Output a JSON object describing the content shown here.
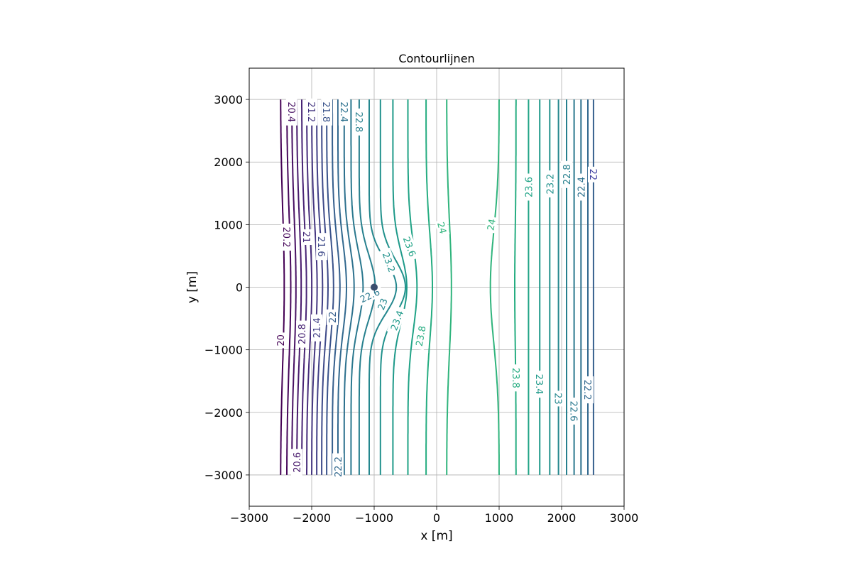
{
  "chart_data": {
    "type": "contour",
    "title": "Contourlijnen",
    "xlabel": "x [m]",
    "ylabel": "y [m]",
    "xlim": [
      -3000,
      3000
    ],
    "ylim": [
      -3500,
      3500
    ],
    "xticks": [
      -3000,
      -2000,
      -1000,
      0,
      1000,
      2000,
      3000
    ],
    "yticks": [
      -3000,
      -2000,
      -1000,
      0,
      1000,
      2000,
      3000
    ],
    "xtick_labels": [
      "−3000",
      "−2000",
      "−1000",
      "0",
      "1000",
      "2000",
      "3000"
    ],
    "ytick_labels": [
      "−3000",
      "−2000",
      "−1000",
      "0",
      "1000",
      "2000",
      "3000"
    ],
    "grid": true,
    "colormap": "viridis",
    "domain": {
      "x": [
        -2500,
        2500
      ],
      "y": [
        -3000,
        3000
      ]
    },
    "well": {
      "x": -1000,
      "y": 0,
      "color": "#3b4e6e"
    },
    "levels_left": [
      {
        "value": 20.0,
        "x": -2500,
        "color": "#440154"
      },
      {
        "value": 20.2,
        "x": -2400,
        "color": "#46065a"
      },
      {
        "value": 20.4,
        "x": -2320,
        "color": "#471063"
      },
      {
        "value": 20.6,
        "x": -2240,
        "color": "#481a6c"
      },
      {
        "value": 20.8,
        "x": -2160,
        "color": "#482475"
      },
      {
        "value": 21.0,
        "x": -2080,
        "color": "#472d7b"
      },
      {
        "value": 21.2,
        "x": -2000,
        "color": "#453781"
      },
      {
        "value": 21.4,
        "x": -1920,
        "color": "#424086"
      },
      {
        "value": 21.6,
        "x": -1840,
        "color": "#3e4a89"
      },
      {
        "value": 21.8,
        "x": -1760,
        "color": "#3a538b"
      },
      {
        "value": 22.0,
        "x": -1670,
        "color": "#355f8d"
      },
      {
        "value": 22.2,
        "x": -1580,
        "color": "#31688e"
      },
      {
        "value": 22.4,
        "x": -1480,
        "color": "#2d718e"
      },
      {
        "value": 22.6,
        "x": -1370,
        "color": "#2a788e"
      },
      {
        "value": 22.8,
        "x": -1240,
        "color": "#27808e"
      },
      {
        "value": 23.0,
        "x": -1080,
        "color": "#24878e"
      },
      {
        "value": 23.2,
        "x": -900,
        "color": "#21918c"
      },
      {
        "value": 23.4,
        "x": -700,
        "color": "#1f9a8a"
      },
      {
        "value": 23.6,
        "x": -460,
        "color": "#20a386"
      },
      {
        "value": 23.8,
        "x": -170,
        "color": "#26ad81"
      },
      {
        "value": 24.0,
        "x": 160,
        "color": "#2fb47c"
      }
    ],
    "levels_right": [
      {
        "value": 24.0,
        "x": 1000,
        "color": "#2fb47c"
      },
      {
        "value": 23.8,
        "x": 1270,
        "color": "#26ad81"
      },
      {
        "value": 23.6,
        "x": 1470,
        "color": "#20a386"
      },
      {
        "value": 23.4,
        "x": 1650,
        "color": "#1f9a8a"
      },
      {
        "value": 23.2,
        "x": 1810,
        "color": "#21918c"
      },
      {
        "value": 23.0,
        "x": 1950,
        "color": "#24878e"
      },
      {
        "value": 22.8,
        "x": 2080,
        "color": "#27808e"
      },
      {
        "value": 22.6,
        "x": 2200,
        "color": "#2a788e"
      },
      {
        "value": 22.4,
        "x": 2310,
        "color": "#2d718e"
      },
      {
        "value": 22.2,
        "x": 2420,
        "color": "#31688e"
      },
      {
        "value": 22.0,
        "x": 2510,
        "color": "#355f8d"
      }
    ],
    "contour_labels": [
      {
        "text": "20.4",
        "x": -2320,
        "y": 2800,
        "rot": 90,
        "color": "#471063"
      },
      {
        "text": "21.2",
        "x": -2000,
        "y": 2800,
        "rot": 90,
        "color": "#453781"
      },
      {
        "text": "21.8",
        "x": -1760,
        "y": 2800,
        "rot": 90,
        "color": "#3a538b"
      },
      {
        "text": "22.4",
        "x": -1480,
        "y": 2800,
        "rot": 90,
        "color": "#2d718e"
      },
      {
        "text": "22.8",
        "x": -1240,
        "y": 2640,
        "rot": 90,
        "color": "#27808e"
      },
      {
        "text": "20.2",
        "x": -2400,
        "y": 800,
        "rot": 90,
        "color": "#46065a"
      },
      {
        "text": "21",
        "x": -2080,
        "y": 800,
        "rot": 90,
        "color": "#472d7b"
      },
      {
        "text": "21.6",
        "x": -1840,
        "y": 650,
        "rot": 90,
        "color": "#3e4a89"
      },
      {
        "text": "23.6",
        "x": -430,
        "y": 650,
        "rot": 70,
        "color": "#20a386"
      },
      {
        "text": "23.2",
        "x": -760,
        "y": 400,
        "rot": 70,
        "color": "#21918c"
      },
      {
        "text": "24",
        "x": 90,
        "y": 950,
        "rot": 75,
        "color": "#2fb47c"
      },
      {
        "text": "24",
        "x": 870,
        "y": 1000,
        "rot": -80,
        "color": "#2fb47c"
      },
      {
        "text": "22.6",
        "x": -1070,
        "y": -130,
        "rot": -25,
        "color": "#2a788e"
      },
      {
        "text": "23",
        "x": -870,
        "y": -270,
        "rot": -70,
        "color": "#24878e"
      },
      {
        "text": "23.4",
        "x": -640,
        "y": -530,
        "rot": -70,
        "color": "#1f9a8a"
      },
      {
        "text": "23.8",
        "x": -260,
        "y": -780,
        "rot": -80,
        "color": "#26ad81"
      },
      {
        "text": "20",
        "x": -2500,
        "y": -850,
        "rot": -90,
        "color": "#440154"
      },
      {
        "text": "20.8",
        "x": -2160,
        "y": -750,
        "rot": -90,
        "color": "#482475"
      },
      {
        "text": "21.4",
        "x": -1920,
        "y": -650,
        "rot": -90,
        "color": "#424086"
      },
      {
        "text": "22",
        "x": -1670,
        "y": -480,
        "rot": -90,
        "color": "#355f8d"
      },
      {
        "text": "20.6",
        "x": -2240,
        "y": -2800,
        "rot": -90,
        "color": "#481a6c"
      },
      {
        "text": "22.2",
        "x": -1580,
        "y": -2870,
        "rot": -90,
        "color": "#31688e"
      },
      {
        "text": "23.6",
        "x": 1470,
        "y": 1600,
        "rot": -90,
        "color": "#20a386"
      },
      {
        "text": "23.2",
        "x": 1810,
        "y": 1650,
        "rot": -90,
        "color": "#21918c"
      },
      {
        "text": "22.8",
        "x": 2080,
        "y": 1800,
        "rot": -90,
        "color": "#27808e"
      },
      {
        "text": "22.4",
        "x": 2310,
        "y": 1600,
        "rot": -90,
        "color": "#2d718e"
      },
      {
        "text": "22",
        "x": 2510,
        "y": 1800,
        "rot": 90,
        "color": "#3b3b9e"
      },
      {
        "text": "23.8",
        "x": 1270,
        "y": -1450,
        "rot": 90,
        "color": "#26ad81"
      },
      {
        "text": "23.4",
        "x": 1650,
        "y": -1550,
        "rot": 90,
        "color": "#1f9a8a"
      },
      {
        "text": "23",
        "x": 1950,
        "y": -1780,
        "rot": 90,
        "color": "#24878e"
      },
      {
        "text": "22.6",
        "x": 2200,
        "y": -1980,
        "rot": 90,
        "color": "#2a788e"
      },
      {
        "text": "22.2",
        "x": 2420,
        "y": -1640,
        "rot": 90,
        "color": "#31688e"
      }
    ]
  }
}
